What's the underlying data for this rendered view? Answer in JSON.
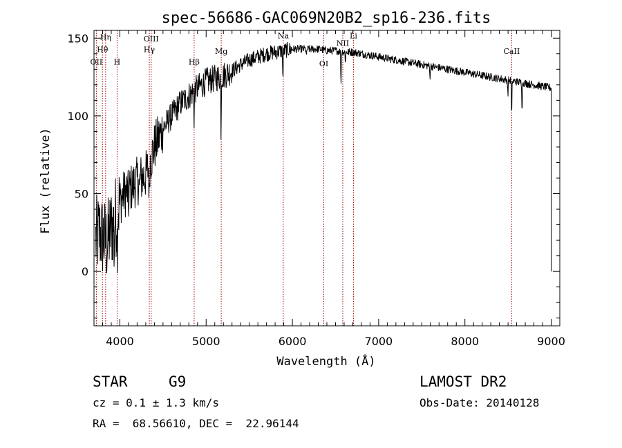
{
  "chart_data": {
    "type": "line",
    "title": "spec-56686-GAC069N20B2_sp16-236.fits",
    "xlabel": "Wavelength (Å)",
    "ylabel": "Flux (relative)",
    "xlim": [
      3700,
      9100
    ],
    "ylim": [
      -35,
      155
    ],
    "x_ticks": [
      4000,
      5000,
      6000,
      7000,
      8000,
      9000
    ],
    "y_ticks": [
      0,
      50,
      100,
      150
    ],
    "x_tick_labels": [
      "4000",
      "5000",
      "6000",
      "7000",
      "8000",
      "9000"
    ],
    "y_tick_labels": [
      "0",
      "50",
      "100",
      "150"
    ],
    "grid": false,
    "legend": "none",
    "series_color": "#000000",
    "line_marker_color": "#a00000",
    "continuum": [
      [
        3720,
        20
      ],
      [
        3760,
        25
      ],
      [
        3800,
        22
      ],
      [
        3850,
        18
      ],
      [
        3900,
        28
      ],
      [
        3950,
        35
      ],
      [
        4000,
        45
      ],
      [
        4050,
        50
      ],
      [
        4100,
        52
      ],
      [
        4200,
        58
      ],
      [
        4300,
        62
      ],
      [
        4400,
        80
      ],
      [
        4500,
        92
      ],
      [
        4600,
        100
      ],
      [
        4700,
        108
      ],
      [
        4800,
        113
      ],
      [
        4900,
        118
      ],
      [
        5000,
        122
      ],
      [
        5100,
        124
      ],
      [
        5200,
        126
      ],
      [
        5300,
        129
      ],
      [
        5400,
        133
      ],
      [
        5500,
        136
      ],
      [
        5600,
        138
      ],
      [
        5700,
        140
      ],
      [
        5800,
        141
      ],
      [
        5900,
        142
      ],
      [
        6000,
        143
      ],
      [
        6100,
        143
      ],
      [
        6200,
        143
      ],
      [
        6300,
        143
      ],
      [
        6400,
        142
      ],
      [
        6500,
        142
      ],
      [
        6600,
        141
      ],
      [
        6700,
        141
      ],
      [
        6800,
        140
      ],
      [
        6900,
        139
      ],
      [
        7000,
        138
      ],
      [
        7100,
        137
      ],
      [
        7200,
        136
      ],
      [
        7300,
        135
      ],
      [
        7400,
        134
      ],
      [
        7500,
        133
      ],
      [
        7600,
        132
      ],
      [
        7700,
        131
      ],
      [
        7800,
        130
      ],
      [
        7900,
        129
      ],
      [
        8000,
        128
      ],
      [
        8100,
        127
      ],
      [
        8200,
        126
      ],
      [
        8300,
        125
      ],
      [
        8400,
        124
      ],
      [
        8500,
        123
      ],
      [
        8600,
        122
      ],
      [
        8700,
        121
      ],
      [
        8800,
        120
      ],
      [
        8900,
        119
      ],
      [
        9000,
        118
      ]
    ],
    "absorption_features": [
      [
        3934,
        20
      ],
      [
        3969,
        22
      ],
      [
        4101,
        12
      ],
      [
        4227,
        10
      ],
      [
        4340,
        25
      ],
      [
        4861,
        18
      ],
      [
        5173,
        35
      ],
      [
        5890,
        20
      ],
      [
        6163,
        6
      ],
      [
        6563,
        22
      ],
      [
        6614,
        6
      ],
      [
        7594,
        8
      ],
      [
        8498,
        10
      ],
      [
        8542,
        25
      ],
      [
        8662,
        18
      ]
    ],
    "spectral_lines": [
      {
        "label": "OII",
        "wavelength": 3727,
        "label_flux": 133
      },
      {
        "label": "Hθ",
        "wavelength": 3798,
        "label_flux": 141
      },
      {
        "label": "Hη",
        "wavelength": 3835,
        "label_flux": 149
      },
      {
        "label": "H",
        "wavelength": 3968,
        "label_flux": 133
      },
      {
        "label": "Hγ",
        "wavelength": 4341,
        "label_flux": 141
      },
      {
        "label": "OIII",
        "wavelength": 4363,
        "label_flux": 148
      },
      {
        "label": "Hβ",
        "wavelength": 4861,
        "label_flux": 133
      },
      {
        "label": "Mg",
        "wavelength": 5175,
        "label_flux": 140
      },
      {
        "label": "Na",
        "wavelength": 5894,
        "label_flux": 150
      },
      {
        "label": "OI",
        "wavelength": 6364,
        "label_flux": 132
      },
      {
        "label": "NII",
        "wavelength": 6584,
        "label_flux": 145
      },
      {
        "label": "Li",
        "wavelength": 6708,
        "label_flux": 150
      },
      {
        "label": "CaII",
        "wavelength": 8542,
        "label_flux": 140
      }
    ]
  },
  "info": {
    "object_class": "STAR",
    "subclass": "G9",
    "survey": "LAMOST DR2",
    "cz": "cz = 0.1 ± 1.3 km/s",
    "obs_date": "Obs-Date: 20140128",
    "coords": "RA =  68.56610, DEC =  22.96144"
  }
}
